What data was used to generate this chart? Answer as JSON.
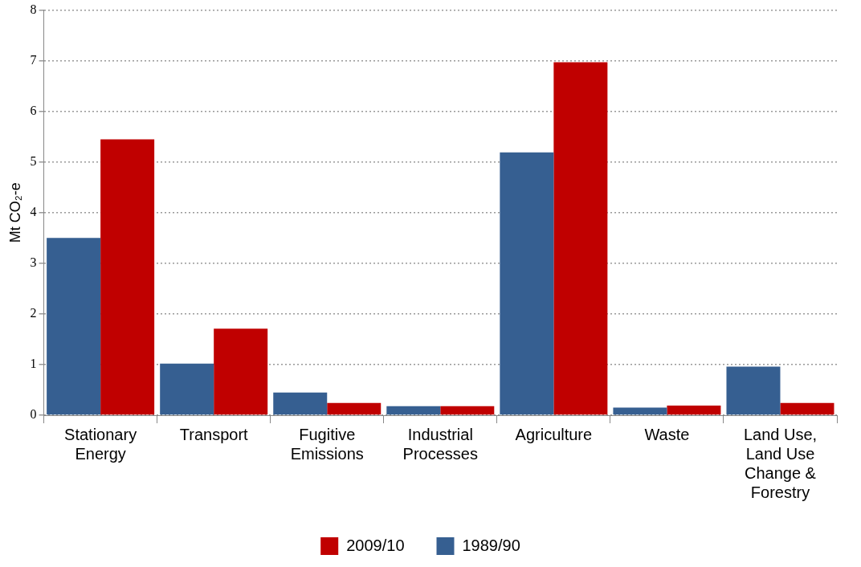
{
  "chart_data": {
    "type": "bar",
    "ylabel": "Mt CO₂-e",
    "categories": [
      "Stationary Energy",
      "Transport",
      "Fugitive Emissions",
      "Industrial Processes",
      "Agriculture",
      "Waste",
      "Land Use, Land Use Change & Forestry"
    ],
    "series": [
      {
        "name": "1989/90",
        "color": "#365f91",
        "values": [
          3.5,
          1.02,
          0.45,
          0.18,
          5.19,
          0.15,
          0.96
        ]
      },
      {
        "name": "2009/10",
        "color": "#c00000",
        "values": [
          5.45,
          1.71,
          0.24,
          0.18,
          6.97,
          0.19,
          0.24
        ]
      }
    ],
    "ylim": [
      0,
      8
    ],
    "yticks": [
      0,
      1,
      2,
      3,
      4,
      5,
      6,
      7,
      8
    ],
    "grid": "y",
    "legend": "bottom"
  }
}
